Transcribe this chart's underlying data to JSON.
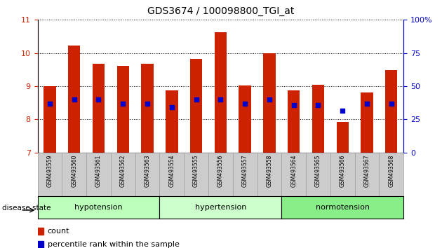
{
  "title": "GDS3674 / 100098800_TGI_at",
  "samples": [
    "GSM493559",
    "GSM493560",
    "GSM493561",
    "GSM493562",
    "GSM493563",
    "GSM493554",
    "GSM493555",
    "GSM493556",
    "GSM493557",
    "GSM493558",
    "GSM493564",
    "GSM493565",
    "GSM493566",
    "GSM493567",
    "GSM493568"
  ],
  "bar_tops": [
    9.0,
    10.22,
    9.67,
    9.62,
    9.67,
    8.87,
    9.82,
    10.62,
    9.03,
    10.0,
    8.87,
    9.05,
    7.92,
    8.82,
    9.48
  ],
  "bar_base": 7.0,
  "blue_dot_y": [
    8.47,
    8.6,
    8.6,
    8.47,
    8.47,
    8.37,
    8.6,
    8.6,
    8.47,
    8.6,
    8.42,
    8.42,
    8.27,
    8.47,
    8.47
  ],
  "bar_color": "#cc2200",
  "dot_color": "#0000cc",
  "ylim": [
    7,
    11
  ],
  "yticks_left": [
    7,
    8,
    9,
    10,
    11
  ],
  "yticks_right": [
    0,
    25,
    50,
    75,
    100
  ],
  "ylabel_left_color": "#cc2200",
  "ylabel_right_color": "#0000cc",
  "groups": [
    {
      "label": "hypotension",
      "start": 0,
      "end": 5,
      "color": "#bbffbb"
    },
    {
      "label": "hypertension",
      "start": 5,
      "end": 10,
      "color": "#ccffcc"
    },
    {
      "label": "normotension",
      "start": 10,
      "end": 15,
      "color": "#88ee88"
    }
  ],
  "disease_state_label": "disease state",
  "legend_count_color": "#cc2200",
  "legend_dot_color": "#0000cc",
  "bar_width": 0.5,
  "tick_box_color": "#cccccc"
}
